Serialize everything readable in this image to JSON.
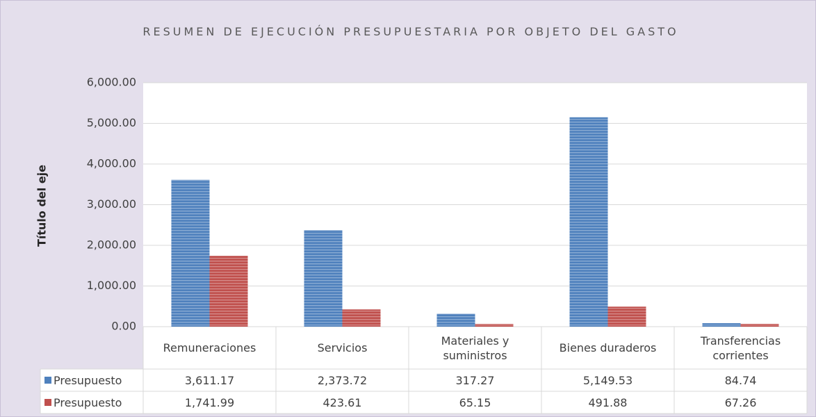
{
  "chart_data": {
    "type": "bar",
    "title": "RESUMEN DE EJECUCIÓN PRESUPUESTARIA POR OBJETO DEL GASTO",
    "y_axis_label": "Título del eje",
    "categories": [
      "Remuneraciones",
      "Servicios",
      "Materiales y suministros",
      "Bienes duraderos",
      "Transferencias corrientes"
    ],
    "series": [
      {
        "name": "Presupuesto",
        "color": "#4f81bd",
        "values": [
          3611.17,
          2373.72,
          317.27,
          5149.53,
          84.74
        ],
        "value_labels": [
          "3,611.17",
          "2,373.72",
          "317.27",
          "5,149.53",
          "84.74"
        ]
      },
      {
        "name": "Presupuesto",
        "color": "#c0504d",
        "values": [
          1741.99,
          423.61,
          65.15,
          491.88,
          67.26
        ],
        "value_labels": [
          "1,741.99",
          "423.61",
          "65.15",
          "491.88",
          "67.26"
        ]
      }
    ],
    "ylim": [
      0,
      6000
    ],
    "yticks": [
      {
        "value": 0,
        "label": "0.00"
      },
      {
        "value": 1000,
        "label": "1,000.00"
      },
      {
        "value": 2000,
        "label": "2,000.00"
      },
      {
        "value": 3000,
        "label": "3,000.00"
      },
      {
        "value": 4000,
        "label": "4,000.00"
      },
      {
        "value": 5000,
        "label": "5,000.00"
      },
      {
        "value": 6000,
        "label": "6,000.00"
      }
    ],
    "grid": true
  }
}
